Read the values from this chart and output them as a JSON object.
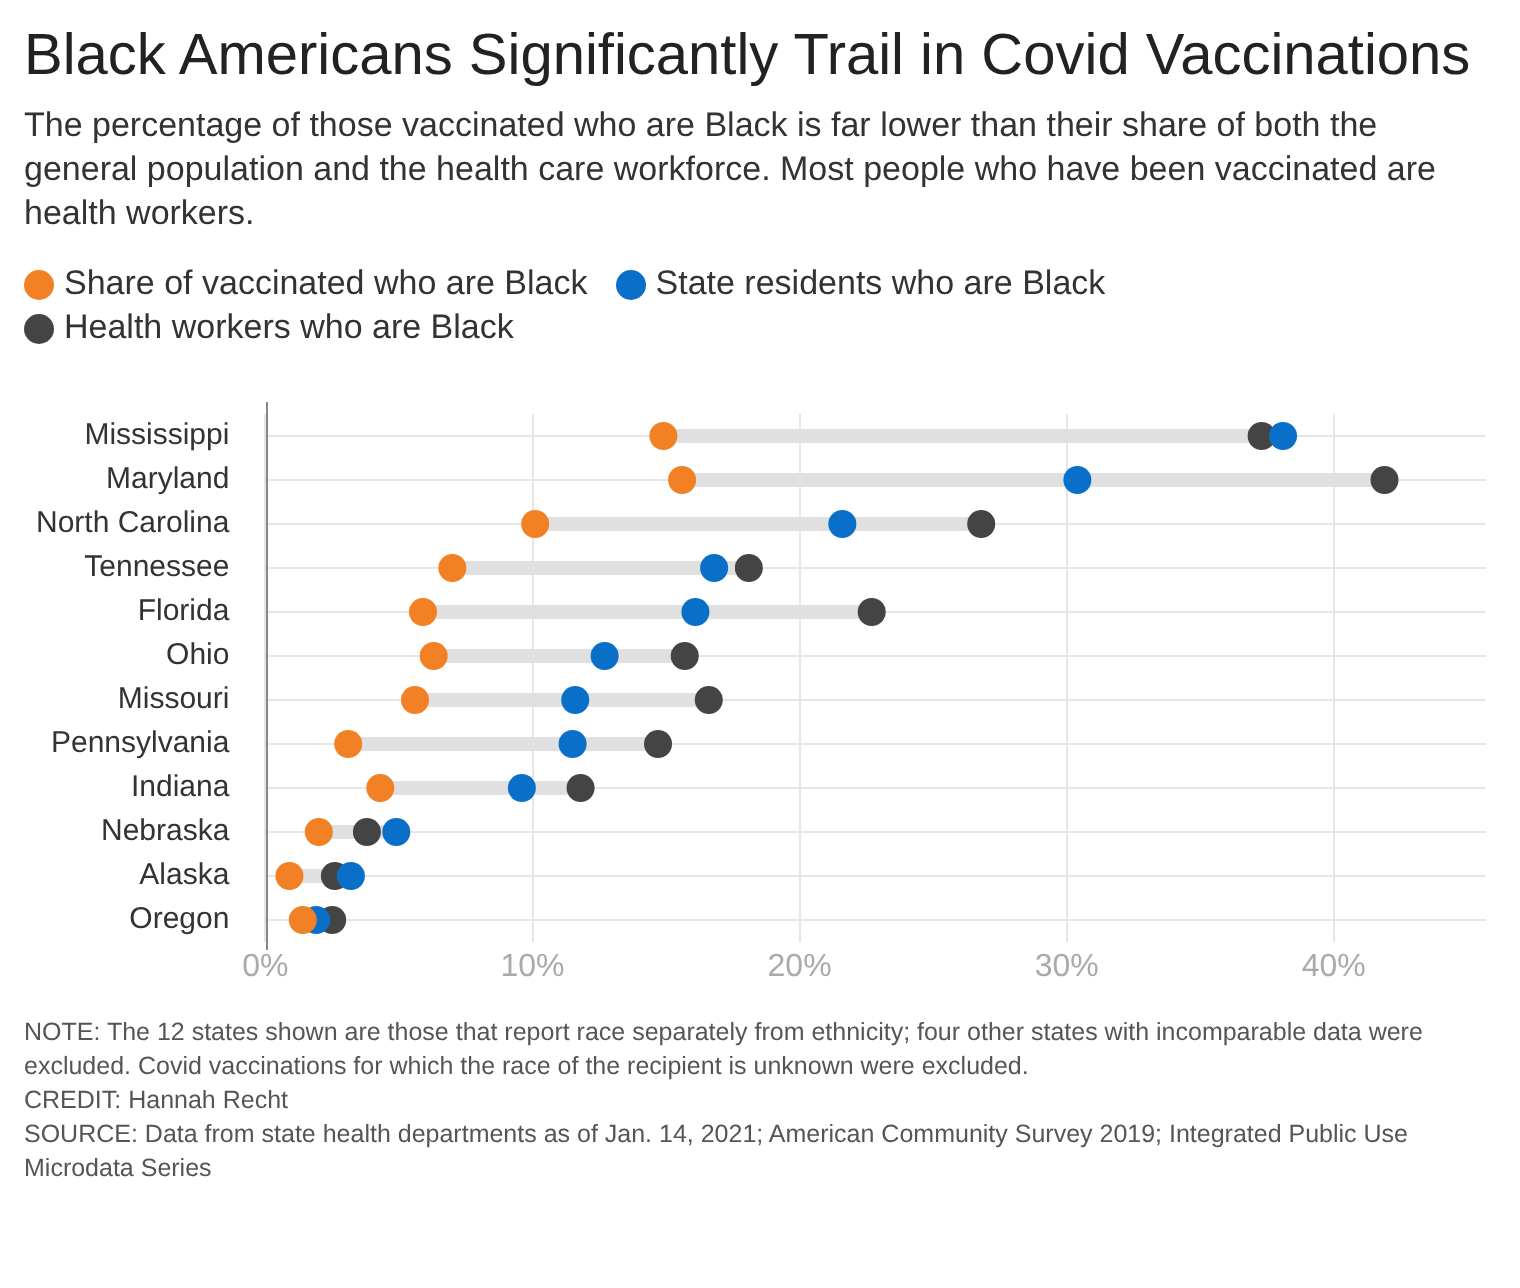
{
  "chart_data": {
    "type": "scatter",
    "orientation": "horizontal",
    "title": "Black Americans Significantly Trail in Covid Vaccinations",
    "subtitle": "The percentage of those vaccinated who are Black is far lower than their share of both the general population and the health care workforce. Most people who have been vaccinated are health workers.",
    "categories": [
      "Mississippi",
      "Maryland",
      "North Carolina",
      "Tennessee",
      "Florida",
      "Ohio",
      "Missouri",
      "Pennsylvania",
      "Indiana",
      "Nebraska",
      "Alaska",
      "Oregon"
    ],
    "series": [
      {
        "name": "Share of vaccinated who are Black",
        "color": "#f28025",
        "values": [
          14.9,
          15.6,
          10.1,
          7.0,
          5.9,
          6.3,
          5.6,
          3.1,
          4.3,
          2.0,
          0.9,
          1.4
        ]
      },
      {
        "name": "State residents who are Black",
        "color": "#0a6fc9",
        "values": [
          38.1,
          30.4,
          21.6,
          16.8,
          16.1,
          12.7,
          11.6,
          11.5,
          9.6,
          4.9,
          3.2,
          1.9
        ]
      },
      {
        "name": "Health workers who are Black",
        "color": "#444444",
        "values": [
          37.3,
          41.9,
          26.8,
          18.1,
          22.7,
          15.7,
          16.6,
          14.7,
          11.8,
          3.8,
          2.6,
          2.5
        ]
      }
    ],
    "xlim": [
      0,
      45.7
    ],
    "xticks": [
      {
        "value": 0,
        "label": "0%"
      },
      {
        "value": 10,
        "label": "10%"
      },
      {
        "value": 20,
        "label": "20%"
      },
      {
        "value": 30,
        "label": "30%"
      },
      {
        "value": 40,
        "label": "40%"
      }
    ],
    "grid": true,
    "legend": "top left",
    "marker": "circle",
    "annotations": [
      "NOTE: The 12 states shown are those that report race separately from ethnicity; four other states with incomparable data were excluded. Covid vaccinations for which the race of the recipient is unknown were excluded.",
      "CREDIT: Hannah Recht",
      "SOURCE: Data from state health departments as of Jan. 14, 2021; American Community Survey 2019; Integrated Public Use Microdata Series"
    ]
  }
}
